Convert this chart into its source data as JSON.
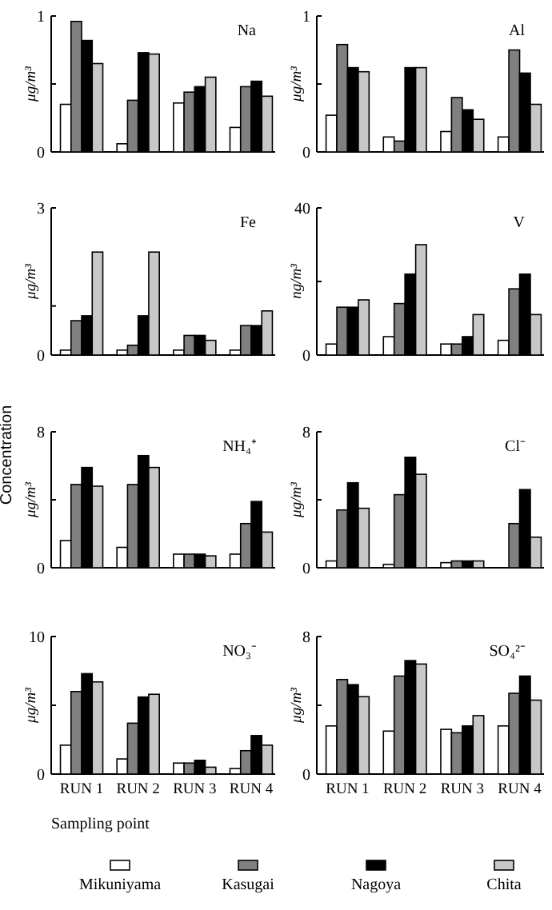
{
  "chart_data": [
    {
      "type": "bar",
      "title": "Na",
      "ylabel": "μg/m³",
      "annotations": [
        "Concentration"
      ],
      "categories": [
        null,
        null,
        null,
        null
      ],
      "ylim": [
        0,
        1
      ],
      "yticks": [
        0,
        {
          "value": 0.5,
          "label": null
        },
        1
      ],
      "tick_labels": "y",
      "legend": "bottom",
      "series": [
        {
          "name": "Mikuniyama",
          "color": "#ffffff",
          "values": [
            0.35,
            0.06,
            0.36,
            0.18
          ]
        },
        {
          "name": "Kasugai",
          "color": "#808080",
          "values": [
            0.96,
            0.38,
            0.44,
            0.48
          ]
        },
        {
          "name": "Nagoya",
          "color": "#000000",
          "values": [
            0.82,
            0.73,
            0.48,
            0.52
          ]
        },
        {
          "name": "Chita",
          "color": "#c8c8c8",
          "values": [
            0.65,
            0.72,
            0.55,
            0.41
          ]
        }
      ]
    },
    {
      "type": "bar",
      "title": "Al",
      "ylabel": "μg/m³",
      "categories": [
        null,
        null,
        null,
        null
      ],
      "ylim": [
        0,
        1
      ],
      "yticks": [
        0,
        {
          "value": 0.5,
          "label": null
        },
        1
      ],
      "tick_labels": "y",
      "series": [
        {
          "color": "#ffffff",
          "values": [
            0.27,
            0.11,
            0.15,
            0.11
          ]
        },
        {
          "color": "#808080",
          "values": [
            0.79,
            0.08,
            0.4,
            0.75
          ]
        },
        {
          "color": "#000000",
          "values": [
            0.62,
            0.62,
            0.31,
            0.58
          ]
        },
        {
          "color": "#c8c8c8",
          "values": [
            0.59,
            0.62,
            0.24,
            0.35
          ]
        }
      ]
    },
    {
      "type": "bar",
      "title": "Fe",
      "ylabel": "μg/m³",
      "categories": [
        null,
        null,
        null,
        null
      ],
      "ylim": [
        0,
        3
      ],
      "yticks": [
        0,
        {
          "value": 1,
          "label": null
        },
        3
      ],
      "tick_labels": "y",
      "series": [
        {
          "color": "#ffffff",
          "values": [
            0.1,
            0.1,
            0.1,
            0.1
          ]
        },
        {
          "color": "#808080",
          "values": [
            0.7,
            0.2,
            0.4,
            0.6
          ]
        },
        {
          "color": "#000000",
          "values": [
            0.8,
            0.8,
            0.4,
            0.6
          ]
        },
        {
          "color": "#c8c8c8",
          "values": [
            2.1,
            2.1,
            0.3,
            0.9
          ]
        }
      ]
    },
    {
      "type": "bar",
      "title": "V",
      "ylabel": "ng/m³",
      "categories": [
        null,
        null,
        null,
        null
      ],
      "ylim": [
        0,
        40
      ],
      "yticks": [
        0,
        {
          "value": 20,
          "label": null
        },
        40
      ],
      "tick_labels": "y",
      "series": [
        {
          "color": "#ffffff",
          "values": [
            3,
            5,
            3,
            4
          ]
        },
        {
          "color": "#808080",
          "values": [
            13,
            14,
            3,
            18
          ]
        },
        {
          "color": "#000000",
          "values": [
            13,
            22,
            5,
            22
          ]
        },
        {
          "color": "#c8c8c8",
          "values": [
            15,
            30,
            11,
            11
          ]
        }
      ]
    },
    {
      "type": "bar",
      "title": "NH₄⁺",
      "ylabel": "μg/m³",
      "categories": [
        null,
        null,
        null,
        null
      ],
      "ylim": [
        0,
        8
      ],
      "yticks": [
        0,
        {
          "value": 4,
          "label": null
        },
        8
      ],
      "tick_labels": "y",
      "series": [
        {
          "color": "#ffffff",
          "values": [
            1.6,
            1.2,
            0.8,
            0.8
          ]
        },
        {
          "color": "#808080",
          "values": [
            4.9,
            4.9,
            0.8,
            2.6
          ]
        },
        {
          "color": "#000000",
          "values": [
            5.9,
            6.6,
            0.8,
            3.9
          ]
        },
        {
          "color": "#c8c8c8",
          "values": [
            4.8,
            5.9,
            0.7,
            2.1
          ]
        }
      ]
    },
    {
      "type": "bar",
      "title": "Cl⁻",
      "ylabel": "μg/m³",
      "categories": [
        null,
        null,
        null,
        null
      ],
      "ylim": [
        0,
        8
      ],
      "yticks": [
        0,
        {
          "value": 4,
          "label": null
        },
        8
      ],
      "tick_labels": "y",
      "series": [
        {
          "color": "#ffffff",
          "values": [
            0.4,
            0.2,
            0.3,
            0
          ]
        },
        {
          "color": "#808080",
          "values": [
            3.4,
            4.3,
            0.4,
            2.6
          ]
        },
        {
          "color": "#000000",
          "values": [
            5.0,
            6.5,
            0.4,
            4.6
          ]
        },
        {
          "color": "#c8c8c8",
          "values": [
            3.5,
            5.5,
            0.4,
            1.8
          ]
        }
      ]
    },
    {
      "type": "bar",
      "title": "NO₃⁻",
      "ylabel": "μg/m³",
      "xlabel": "Sampling point",
      "categories": [
        "RUN 1",
        "RUN 2",
        "RUN 3",
        "RUN 4"
      ],
      "ylim": [
        0,
        10
      ],
      "yticks": [
        0,
        {
          "value": 5,
          "label": null
        },
        10
      ],
      "series": [
        {
          "color": "#ffffff",
          "values": [
            2.1,
            1.1,
            0.8,
            0.4
          ]
        },
        {
          "color": "#808080",
          "values": [
            6.0,
            3.7,
            0.8,
            1.7
          ]
        },
        {
          "color": "#000000",
          "values": [
            7.3,
            5.6,
            1.0,
            2.8
          ]
        },
        {
          "color": "#c8c8c8",
          "values": [
            6.7,
            5.8,
            0.5,
            2.1
          ]
        }
      ]
    },
    {
      "type": "bar",
      "title": "SO₄²⁻",
      "ylabel": "μg/m³",
      "categories": [
        "RUN 1",
        "RUN 2",
        "RUN 3",
        "RUN 4"
      ],
      "ylim": [
        0,
        8
      ],
      "yticks": [
        0,
        {
          "value": 4,
          "label": null
        },
        8
      ],
      "series": [
        {
          "color": "#ffffff",
          "values": [
            2.8,
            2.5,
            2.6,
            2.8
          ]
        },
        {
          "color": "#808080",
          "values": [
            5.5,
            5.7,
            2.4,
            4.7
          ]
        },
        {
          "color": "#000000",
          "values": [
            5.2,
            6.6,
            2.8,
            5.7
          ]
        },
        {
          "color": "#c8c8c8",
          "values": [
            4.5,
            6.4,
            3.4,
            4.3
          ]
        }
      ]
    }
  ]
}
